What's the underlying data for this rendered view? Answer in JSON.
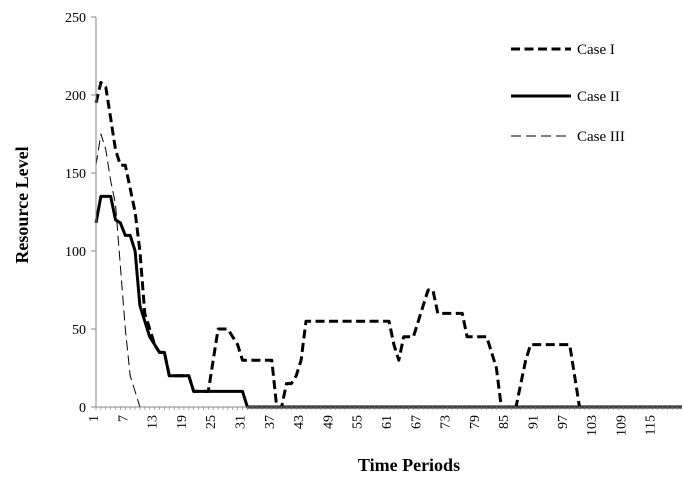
{
  "chart_data": {
    "type": "line",
    "xlabel": "Time Periods",
    "ylabel": "Resource Level",
    "xlim": [
      1,
      120
    ],
    "ylim": [
      0,
      250
    ],
    "yticks": [
      0,
      50,
      100,
      150,
      200,
      250
    ],
    "xticks": [
      1,
      7,
      13,
      19,
      25,
      31,
      37,
      43,
      49,
      55,
      61,
      67,
      73,
      79,
      85,
      91,
      97,
      103,
      109,
      115
    ],
    "legend_position": "top-right",
    "grid": false,
    "series": [
      {
        "name": "Case I",
        "style": "thick-dashed",
        "color": "#000000",
        "points": [
          [
            0,
            195
          ],
          [
            1,
            208
          ],
          [
            2,
            205
          ],
          [
            3,
            185
          ],
          [
            4,
            165
          ],
          [
            5,
            155
          ],
          [
            6,
            155
          ],
          [
            7,
            140
          ],
          [
            8,
            125
          ],
          [
            9,
            100
          ],
          [
            10,
            60
          ],
          [
            11,
            50
          ],
          [
            12,
            40
          ],
          [
            13,
            35
          ],
          [
            14,
            35
          ],
          [
            15,
            20
          ],
          [
            16,
            20
          ],
          [
            17,
            20
          ],
          [
            18,
            20
          ],
          [
            19,
            20
          ],
          [
            20,
            10
          ],
          [
            21,
            10
          ],
          [
            22,
            10
          ],
          [
            23,
            10
          ],
          [
            24,
            30
          ],
          [
            25,
            50
          ],
          [
            26,
            50
          ],
          [
            27,
            50
          ],
          [
            28,
            45
          ],
          [
            29,
            40
          ],
          [
            30,
            30
          ],
          [
            31,
            30
          ],
          [
            32,
            30
          ],
          [
            33,
            30
          ],
          [
            34,
            30
          ],
          [
            35,
            30
          ],
          [
            36,
            30
          ],
          [
            37,
            0
          ],
          [
            38,
            0
          ],
          [
            39,
            15
          ],
          [
            40,
            15
          ],
          [
            41,
            20
          ],
          [
            42,
            30
          ],
          [
            43,
            55
          ],
          [
            44,
            55
          ],
          [
            45,
            55
          ],
          [
            46,
            55
          ],
          [
            47,
            55
          ],
          [
            48,
            55
          ],
          [
            49,
            55
          ],
          [
            50,
            55
          ],
          [
            51,
            55
          ],
          [
            52,
            55
          ],
          [
            53,
            55
          ],
          [
            54,
            55
          ],
          [
            55,
            55
          ],
          [
            56,
            55
          ],
          [
            57,
            55
          ],
          [
            58,
            55
          ],
          [
            59,
            55
          ],
          [
            60,
            55
          ],
          [
            61,
            40
          ],
          [
            62,
            30
          ],
          [
            63,
            45
          ],
          [
            64,
            45
          ],
          [
            65,
            45
          ],
          [
            66,
            55
          ],
          [
            67,
            65
          ],
          [
            68,
            75
          ],
          [
            69,
            75
          ],
          [
            70,
            60
          ],
          [
            71,
            60
          ],
          [
            72,
            60
          ],
          [
            73,
            60
          ],
          [
            74,
            60
          ],
          [
            75,
            60
          ],
          [
            76,
            45
          ],
          [
            77,
            45
          ],
          [
            78,
            45
          ],
          [
            79,
            45
          ],
          [
            80,
            45
          ],
          [
            81,
            35
          ],
          [
            82,
            25
          ],
          [
            83,
            0
          ],
          [
            84,
            0
          ],
          [
            85,
            0
          ],
          [
            86,
            0
          ],
          [
            87,
            15
          ],
          [
            88,
            30
          ],
          [
            89,
            40
          ],
          [
            90,
            40
          ],
          [
            91,
            40
          ],
          [
            92,
            40
          ],
          [
            93,
            40
          ],
          [
            94,
            40
          ],
          [
            95,
            40
          ],
          [
            96,
            40
          ],
          [
            97,
            40
          ],
          [
            98,
            20
          ],
          [
            99,
            0
          ],
          [
            100,
            0
          ],
          [
            120,
            0
          ]
        ]
      },
      {
        "name": "Case II",
        "style": "solid",
        "color": "#000000",
        "points": [
          [
            0,
            118
          ],
          [
            1,
            135
          ],
          [
            2,
            135
          ],
          [
            3,
            135
          ],
          [
            4,
            120
          ],
          [
            5,
            118
          ],
          [
            6,
            110
          ],
          [
            7,
            110
          ],
          [
            8,
            100
          ],
          [
            9,
            65
          ],
          [
            10,
            55
          ],
          [
            11,
            45
          ],
          [
            12,
            40
          ],
          [
            13,
            35
          ],
          [
            14,
            35
          ],
          [
            15,
            20
          ],
          [
            16,
            20
          ],
          [
            17,
            20
          ],
          [
            18,
            20
          ],
          [
            19,
            20
          ],
          [
            20,
            10
          ],
          [
            21,
            10
          ],
          [
            22,
            10
          ],
          [
            23,
            10
          ],
          [
            24,
            10
          ],
          [
            25,
            10
          ],
          [
            26,
            10
          ],
          [
            27,
            10
          ],
          [
            28,
            10
          ],
          [
            29,
            10
          ],
          [
            30,
            10
          ],
          [
            31,
            0
          ],
          [
            120,
            0
          ]
        ]
      },
      {
        "name": "Case III",
        "style": "thin-dashed",
        "color": "#000000",
        "points": [
          [
            0,
            155
          ],
          [
            1,
            175
          ],
          [
            2,
            165
          ],
          [
            3,
            145
          ],
          [
            4,
            130
          ],
          [
            5,
            90
          ],
          [
            6,
            50
          ],
          [
            7,
            20
          ],
          [
            8,
            10
          ],
          [
            9,
            0
          ],
          [
            120,
            0
          ]
        ]
      }
    ]
  }
}
